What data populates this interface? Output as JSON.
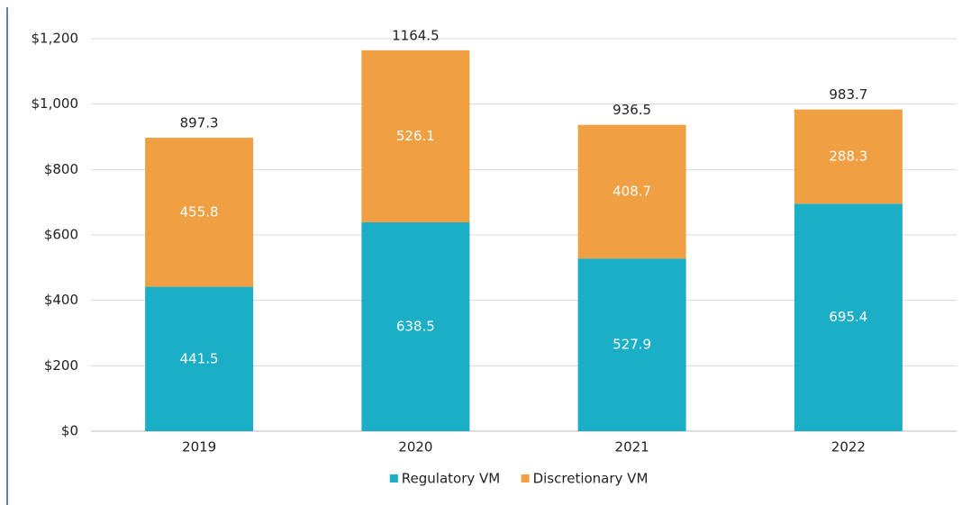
{
  "chart_data": {
    "type": "stacked_bar",
    "categories": [
      "2019",
      "2020",
      "2021",
      "2022"
    ],
    "series": [
      {
        "name": "Regulatory VM",
        "color": "#1aafc7",
        "values": [
          441.5,
          638.5,
          527.9,
          695.4
        ]
      },
      {
        "name": "Discretionary VM",
        "color": "#f0a042",
        "values": [
          455.8,
          526.1,
          408.7,
          288.3
        ]
      }
    ],
    "totals": [
      897.3,
      1164.5,
      936.5,
      983.7
    ],
    "ylim": [
      0,
      1200
    ],
    "yticks": [
      {
        "value": 0,
        "label": "$0"
      },
      {
        "value": 200,
        "label": "$200"
      },
      {
        "value": 400,
        "label": "$400"
      },
      {
        "value": 600,
        "label": "$600"
      },
      {
        "value": 800,
        "label": "$800"
      },
      {
        "value": 1000,
        "label": "$1,000"
      },
      {
        "value": 1200,
        "label": "$1,200"
      }
    ],
    "grid": true,
    "legend": "bottom"
  }
}
